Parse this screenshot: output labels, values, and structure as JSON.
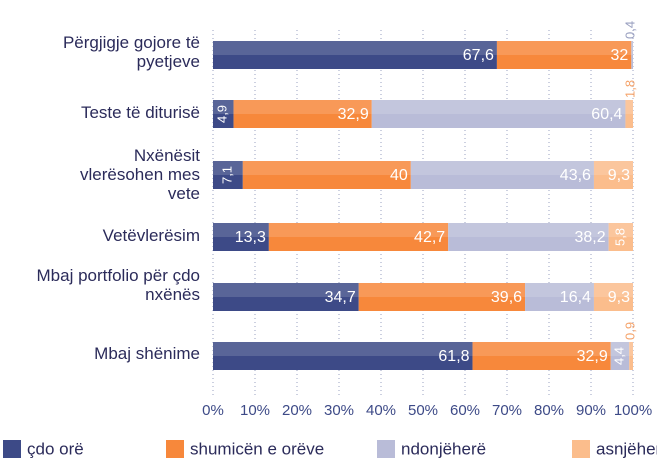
{
  "chart_data": {
    "type": "stacked-barh",
    "categories": [
      "Përgjigje gojore të pyetjeve",
      "Teste të diturisë",
      "Nxënësit vlerësohen mes vete",
      "Vetëvlerësim",
      "Mbaj portfolio për çdo nxënës",
      "Mbaj shënime"
    ],
    "series": [
      {
        "name": "çdo orë",
        "color": "#3d4a87",
        "values": [
          67.6,
          4.9,
          7.1,
          13.3,
          34.7,
          61.8
        ],
        "value_labels": [
          "67,6",
          "4,9",
          "7,1",
          "13,3",
          "34,7",
          "61,8"
        ]
      },
      {
        "name": "shumicën e orëve",
        "color": "#f7883b",
        "values": [
          32,
          32.9,
          40,
          42.7,
          39.6,
          32.9
        ],
        "value_labels": [
          "32",
          "32,9",
          "40",
          "42,7",
          "39,6",
          "32,9"
        ]
      },
      {
        "name": "ndonjëherë",
        "color": "#b9bcd8",
        "values": [
          0.4,
          60.4,
          43.6,
          38.2,
          16.4,
          4.4
        ],
        "value_labels": [
          "0,4",
          "60,4",
          "43,6",
          "38,2",
          "16,4",
          "4,4"
        ]
      },
      {
        "name": "asnjëherë",
        "color": "#fbbd8c",
        "values": [
          null,
          1.8,
          9.3,
          5.8,
          9.3,
          0.9
        ],
        "value_labels": [
          null,
          "1,8",
          "9,3",
          "5,8",
          "9,3",
          "0,9"
        ]
      }
    ],
    "xlim": [
      0,
      100
    ],
    "xticks": [
      {
        "value": 0,
        "label": "0%"
      },
      {
        "value": 10,
        "label": "10%"
      },
      {
        "value": 20,
        "label": "20%"
      },
      {
        "value": 30,
        "label": "30%"
      },
      {
        "value": 40,
        "label": "40%"
      },
      {
        "value": 50,
        "label": "50%"
      },
      {
        "value": 60,
        "label": "60%"
      },
      {
        "value": 70,
        "label": "70%"
      },
      {
        "value": 80,
        "label": "80%"
      },
      {
        "value": 90,
        "label": "90%"
      },
      {
        "value": 100,
        "label": "100%"
      }
    ],
    "grid": true,
    "legend": "bottom"
  }
}
